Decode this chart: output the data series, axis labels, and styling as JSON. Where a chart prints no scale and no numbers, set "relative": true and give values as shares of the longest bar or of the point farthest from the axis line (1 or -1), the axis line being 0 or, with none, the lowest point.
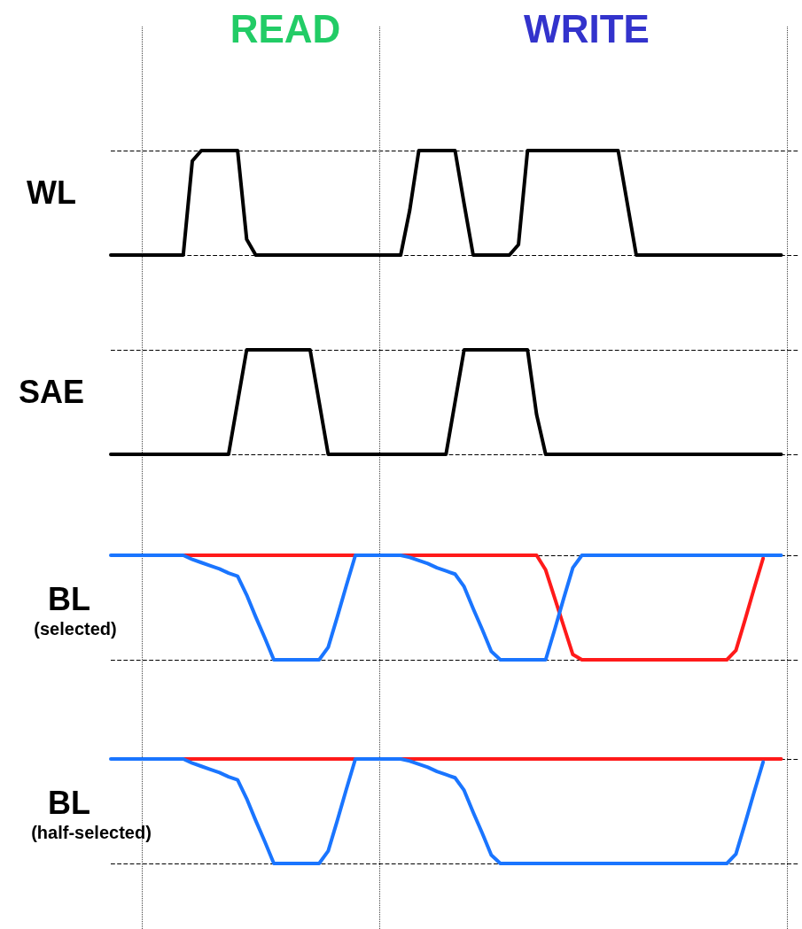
{
  "chart_data": [
    {
      "type": "line",
      "relative": true,
      "ylabel": "WL",
      "annotations": [
        "READ",
        "WRITE"
      ],
      "marker": "none",
      "line_style": "solid",
      "grid": "y",
      "categories": [
        null,
        null,
        null,
        null,
        null,
        null,
        null,
        null,
        null,
        null,
        null,
        null,
        null,
        null,
        null,
        null,
        null,
        null,
        null,
        null,
        null,
        null,
        null,
        null,
        null,
        null,
        null,
        null,
        null,
        null,
        null,
        null,
        null,
        null,
        null,
        null,
        null,
        null,
        null,
        null,
        null,
        null,
        null,
        null,
        null,
        null,
        null,
        null,
        null,
        null,
        null,
        null,
        null,
        null,
        null,
        null,
        null,
        null,
        null,
        null,
        null,
        null,
        null,
        null,
        null,
        null,
        null,
        null,
        null,
        null,
        null,
        null,
        null,
        null,
        null,
        null,
        null
      ],
      "series": [
        {
          "color": "#000000",
          "values": [
            0,
            0,
            0,
            0,
            0,
            0,
            0,
            0,
            0,
            0.9,
            1,
            1,
            1,
            1,
            1,
            0.15,
            0,
            0,
            0,
            0,
            0,
            0,
            0,
            0,
            0,
            0,
            0,
            0,
            0,
            0,
            0,
            0,
            0,
            0.43,
            1,
            1,
            1,
            1,
            1,
            0.49,
            0,
            0,
            0,
            0,
            0,
            0.1,
            1,
            1,
            1,
            1,
            1,
            1,
            1,
            1,
            1,
            1,
            1,
            0.5,
            0,
            0,
            0,
            0,
            0,
            0,
            0,
            0,
            0,
            0,
            0,
            0,
            0,
            0,
            0,
            0,
            0,
            null,
            null
          ]
        }
      ]
    },
    {
      "type": "line",
      "relative": true,
      "ylabel": "SAE",
      "marker": "none",
      "line_style": "solid",
      "grid": "y",
      "categories": [
        null,
        null,
        null,
        null,
        null,
        null,
        null,
        null,
        null,
        null,
        null,
        null,
        null,
        null,
        null,
        null,
        null,
        null,
        null,
        null,
        null,
        null,
        null,
        null,
        null,
        null,
        null,
        null,
        null,
        null,
        null,
        null,
        null,
        null,
        null,
        null,
        null,
        null,
        null,
        null,
        null,
        null,
        null,
        null,
        null,
        null,
        null,
        null,
        null,
        null,
        null,
        null,
        null,
        null,
        null,
        null,
        null,
        null,
        null,
        null,
        null,
        null,
        null,
        null,
        null,
        null,
        null,
        null,
        null,
        null,
        null,
        null,
        null,
        null,
        null,
        null,
        null
      ],
      "series": [
        {
          "color": "#000000",
          "values": [
            0,
            0,
            0,
            0,
            0,
            0,
            0,
            0,
            0,
            0,
            0,
            0,
            0,
            0,
            0.5,
            1,
            1,
            1,
            1,
            1,
            1,
            1,
            1,
            0.5,
            0,
            0,
            0,
            0,
            0,
            0,
            0,
            0,
            0,
            0,
            0,
            0,
            0,
            0,
            0.5,
            1,
            1,
            1,
            1,
            1,
            1,
            1,
            1,
            0.38,
            0,
            0,
            0,
            0,
            0,
            0,
            0,
            0,
            0,
            0,
            0,
            0,
            0,
            0,
            0,
            0,
            0,
            0,
            0,
            0,
            0,
            0,
            0,
            0,
            0,
            0,
            0,
            null,
            null
          ]
        }
      ]
    },
    {
      "type": "line",
      "relative": true,
      "ylabel": "BL",
      "annotations": [
        "(selected)"
      ],
      "marker": "none",
      "line_style": "solid",
      "grid": "y",
      "categories": [
        null,
        null,
        null,
        null,
        null,
        null,
        null,
        null,
        null,
        null,
        null,
        null,
        null,
        null,
        null,
        null,
        null,
        null,
        null,
        null,
        null,
        null,
        null,
        null,
        null,
        null,
        null,
        null,
        null,
        null,
        null,
        null,
        null,
        null,
        null,
        null,
        null,
        null,
        null,
        null,
        null,
        null,
        null,
        null,
        null,
        null,
        null,
        null,
        null,
        null,
        null,
        null,
        null,
        null,
        null,
        null,
        null,
        null,
        null,
        null,
        null,
        null,
        null,
        null,
        null,
        null,
        null,
        null,
        null,
        null,
        null,
        null,
        null,
        null,
        null,
        null,
        null
      ],
      "series": [
        {
          "color": "#ff1a1a",
          "values": [
            null,
            null,
            null,
            null,
            null,
            null,
            null,
            null,
            1,
            1,
            1,
            1,
            1,
            1,
            1,
            1,
            1,
            1,
            1,
            1,
            1,
            1,
            1,
            1,
            1,
            1,
            1,
            1,
            null,
            null,
            null,
            null,
            1,
            1,
            1,
            1,
            1,
            1,
            1,
            1,
            1,
            1,
            1,
            1,
            1,
            1,
            1,
            1,
            0.86,
            0.59,
            0.32,
            0.05,
            0,
            0,
            0,
            0,
            0,
            0,
            0,
            0,
            0,
            0,
            0,
            0,
            0,
            0,
            0,
            0,
            0,
            0.09,
            0.38,
            0.68,
            0.97,
            null,
            null,
            null,
            null
          ]
        },
        {
          "color": "#1a75ff",
          "values": [
            1,
            1,
            1,
            1,
            1,
            1,
            1,
            1,
            1,
            0.96,
            0.93,
            0.9,
            0.87,
            0.83,
            0.8,
            0.62,
            0.41,
            0.21,
            0,
            0,
            0,
            0,
            0,
            0,
            0.12,
            0.41,
            0.71,
            1,
            1,
            1,
            1,
            1,
            1,
            0.98,
            0.95,
            0.92,
            0.88,
            0.85,
            0.82,
            0.7,
            0.49,
            0.29,
            0.08,
            0,
            0,
            0,
            0,
            0,
            0,
            0.29,
            0.59,
            0.88,
            1,
            1,
            1,
            1,
            1,
            1,
            1,
            1,
            1,
            1,
            1,
            1,
            1,
            1,
            1,
            1,
            1,
            1,
            1,
            1,
            1,
            1,
            1,
            null,
            null
          ]
        }
      ]
    },
    {
      "type": "line",
      "relative": true,
      "ylabel": "BL",
      "annotations": [
        "(half-selected)"
      ],
      "marker": "none",
      "line_style": "solid",
      "grid": "y",
      "categories": [
        null,
        null,
        null,
        null,
        null,
        null,
        null,
        null,
        null,
        null,
        null,
        null,
        null,
        null,
        null,
        null,
        null,
        null,
        null,
        null,
        null,
        null,
        null,
        null,
        null,
        null,
        null,
        null,
        null,
        null,
        null,
        null,
        null,
        null,
        null,
        null,
        null,
        null,
        null,
        null,
        null,
        null,
        null,
        null,
        null,
        null,
        null,
        null,
        null,
        null,
        null,
        null,
        null,
        null,
        null,
        null,
        null,
        null,
        null,
        null,
        null,
        null,
        null,
        null,
        null,
        null,
        null,
        null,
        null,
        null,
        null,
        null,
        null,
        null,
        null,
        null,
        null
      ],
      "series": [
        {
          "color": "#ff1a1a",
          "values": [
            null,
            null,
            null,
            null,
            null,
            null,
            null,
            null,
            1,
            1,
            1,
            1,
            1,
            1,
            1,
            1,
            1,
            1,
            1,
            1,
            1,
            1,
            1,
            1,
            1,
            1,
            1,
            1,
            null,
            null,
            null,
            null,
            1,
            1,
            1,
            1,
            1,
            1,
            1,
            1,
            1,
            1,
            1,
            1,
            1,
            1,
            1,
            1,
            1,
            1,
            1,
            1,
            1,
            1,
            1,
            1,
            1,
            1,
            1,
            1,
            1,
            1,
            1,
            1,
            1,
            1,
            1,
            1,
            1,
            1,
            1,
            1,
            1,
            1,
            1,
            null,
            null
          ]
        },
        {
          "color": "#1a75ff",
          "values": [
            1,
            1,
            1,
            1,
            1,
            1,
            1,
            1,
            1,
            0.96,
            0.93,
            0.9,
            0.87,
            0.83,
            0.8,
            0.62,
            0.41,
            0.21,
            0,
            0,
            0,
            0,
            0,
            0,
            0.12,
            0.41,
            0.71,
            1,
            1,
            1,
            1,
            1,
            1,
            0.98,
            0.95,
            0.92,
            0.88,
            0.85,
            0.82,
            0.7,
            0.49,
            0.29,
            0.08,
            0,
            0,
            0,
            0,
            0,
            0,
            0,
            0,
            0,
            0,
            0,
            0,
            0,
            0,
            0,
            0,
            0,
            0,
            0,
            0,
            0,
            0,
            0,
            0,
            0,
            0,
            0.09,
            0.38,
            0.68,
            0.97,
            null,
            null,
            null,
            null
          ]
        }
      ]
    }
  ]
}
